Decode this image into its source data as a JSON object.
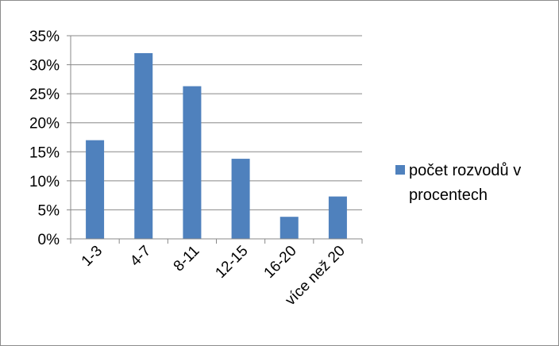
{
  "colors": {
    "bar": "#4f81bd",
    "grid": "#888888",
    "axis": "#888888",
    "border": "#8c8c8c"
  },
  "chart_data": {
    "type": "bar",
    "title": "",
    "xlabel": "",
    "ylabel": "",
    "categories": [
      "1-3",
      "4-7",
      "8-11",
      "12-15",
      "16-20",
      "více než 20"
    ],
    "series": [
      {
        "name": "počet rozvodů v procentech",
        "values": [
          17,
          32,
          26.3,
          13.8,
          3.8,
          7.3
        ]
      }
    ],
    "ylim": [
      0,
      35
    ],
    "yticks": [
      "0%",
      "5%",
      "10%",
      "15%",
      "20%",
      "25%",
      "30%",
      "35%"
    ],
    "grid": true,
    "legend": "right",
    "legend_lines": [
      "počet rozvodů v",
      "procentech"
    ]
  }
}
